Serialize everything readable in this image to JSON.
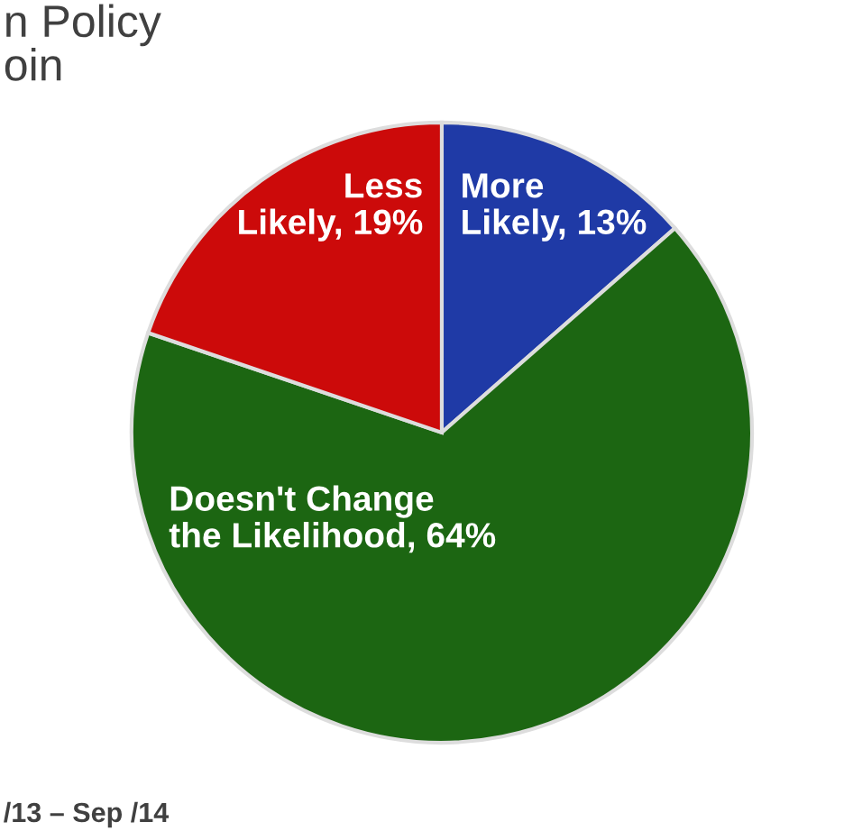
{
  "chart_data": {
    "type": "pie",
    "title": "n Policy\noin",
    "categories": [
      "More\nLikely",
      "Doesn't Change\nthe Likelihood",
      "Less\nLikely"
    ],
    "values": [
      13,
      64,
      19
    ],
    "value_labels": [
      "13%",
      "64%",
      "19%"
    ],
    "colors": [
      "#1f3aa6",
      "#1c6612",
      "#cc0a0a"
    ],
    "annotations": [
      "/13 – Sep /14"
    ],
    "legend": false
  }
}
